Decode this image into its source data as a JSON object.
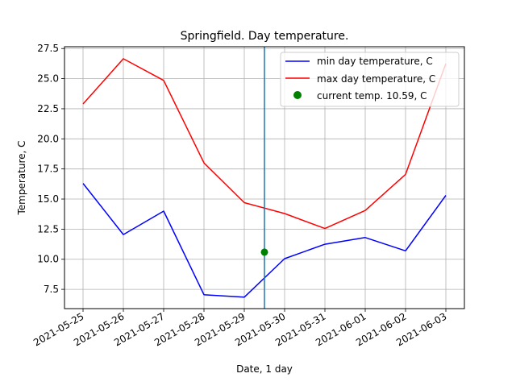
{
  "chart_data": {
    "type": "line",
    "title": "Springfield. Day temperature.",
    "xlabel": "Date, 1 day",
    "ylabel": "Temperature, C",
    "categories": [
      "2021-05-25",
      "2021-05-26",
      "2021-05-27",
      "2021-05-28",
      "2021-05-29",
      "2021-05-30",
      "2021-05-31",
      "2021-06-01",
      "2021-06-02",
      "2021-06-03"
    ],
    "series": [
      {
        "name": "min day temperature, C",
        "color": "#0000ff",
        "values": [
          16.3,
          12.05,
          14.0,
          7.05,
          6.85,
          10.05,
          11.25,
          11.8,
          10.7,
          15.3
        ]
      },
      {
        "name": "max day temperature, C",
        "color": "#ff0000",
        "values": [
          22.9,
          26.65,
          24.85,
          18.0,
          14.7,
          13.8,
          12.55,
          14.05,
          17.05,
          26.25
        ]
      }
    ],
    "current_point": {
      "name": "current temp. 10.59, C",
      "color": "#008000",
      "x": "2021-05-29 12:00",
      "y": 10.59
    },
    "vertical_line": {
      "x": "2021-05-29 12:00",
      "color": "#1f77b4"
    },
    "yticks": [
      "7.5",
      "10.0",
      "12.5",
      "15.0",
      "17.5",
      "20.0",
      "22.5",
      "25.0",
      "27.5"
    ],
    "ylim": [
      5.9,
      27.65
    ],
    "grid": true,
    "legend": "top-right"
  }
}
